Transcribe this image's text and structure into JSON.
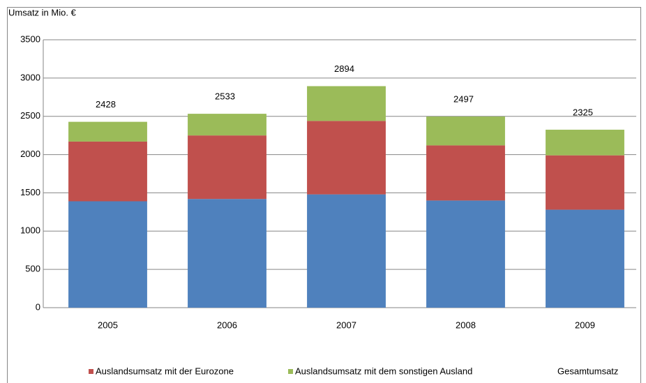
{
  "chart_data": {
    "type": "stacked-bar",
    "y_label": "Umsatz in Mio. €",
    "categories": [
      "2005",
      "2006",
      "2007",
      "2008",
      "2009"
    ],
    "series": [
      {
        "color": "#4f81bd",
        "values": [
          1390,
          1420,
          1480,
          1400,
          1280
        ]
      },
      {
        "name": "Auslandsumsatz mit der Eurozone",
        "color": "#c0504d",
        "values": [
          780,
          830,
          960,
          720,
          710
        ]
      },
      {
        "name": "Auslandsumsatz mit dem sonstigen Ausland",
        "color": "#9bbb59",
        "values": [
          258,
          283,
          454,
          377,
          335
        ]
      }
    ],
    "totals": {
      "name": "Gesamtumsatz",
      "values": [
        2428,
        2533,
        2894,
        2497,
        2325
      ]
    },
    "ylim": [
      0,
      3500
    ],
    "yticks": [
      0,
      500,
      1000,
      1500,
      2000,
      2500,
      3000,
      3500
    ],
    "grid": true
  }
}
